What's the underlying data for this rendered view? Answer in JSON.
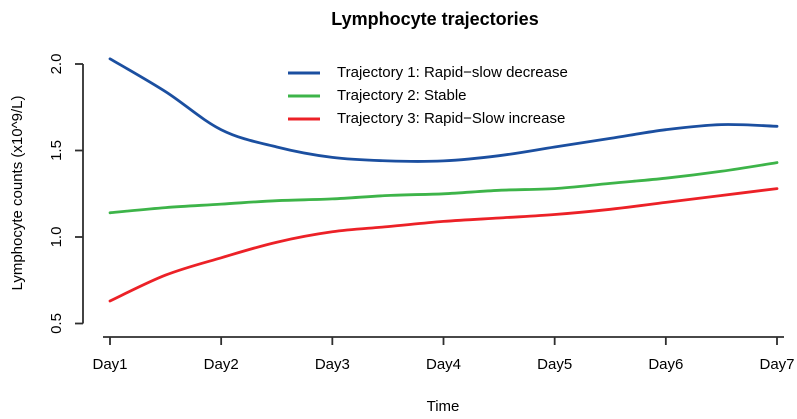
{
  "chart_data": {
    "type": "line",
    "title": "Lymphocyte trajectories",
    "xlabel": "Time",
    "ylabel": "Lymphocyte counts (x10^9/L)",
    "categories": [
      "Day1",
      "Day2",
      "Day3",
      "Day4",
      "Day5",
      "Day6",
      "Day7"
    ],
    "x_tick_values": [
      1,
      2,
      3,
      4,
      5,
      6,
      7
    ],
    "y_tick_labels": [
      "0.5",
      "1.0",
      "1.5",
      "2.0"
    ],
    "y_tick_values": [
      0.5,
      1.0,
      1.5,
      2.0
    ],
    "xlim": [
      1,
      7
    ],
    "ylim": [
      0.5,
      2.05
    ],
    "grid": false,
    "legend_position": "top-center-inside",
    "x": [
      1,
      1.5,
      2,
      2.5,
      3,
      3.5,
      4,
      4.5,
      5,
      5.5,
      6,
      6.5,
      7
    ],
    "series": [
      {
        "name": "Trajectory 1: Rapid−slow decrease",
        "color": "#1b4fa0",
        "values": [
          2.03,
          1.84,
          1.62,
          1.52,
          1.46,
          1.44,
          1.44,
          1.47,
          1.52,
          1.57,
          1.62,
          1.65,
          1.64
        ]
      },
      {
        "name": "Trajectory 2: Stable",
        "color": "#3db449",
        "values": [
          1.14,
          1.17,
          1.19,
          1.21,
          1.22,
          1.24,
          1.25,
          1.27,
          1.28,
          1.31,
          1.34,
          1.38,
          1.43
        ]
      },
      {
        "name": "Trajectory 3: Rapid−Slow increase",
        "color": "#ec2127",
        "values": [
          0.63,
          0.78,
          0.88,
          0.97,
          1.03,
          1.06,
          1.09,
          1.11,
          1.13,
          1.16,
          1.2,
          1.24,
          1.28
        ]
      }
    ],
    "axis_color": "#2e2e2e",
    "text_color": "#000000",
    "background": "#ffffff"
  }
}
